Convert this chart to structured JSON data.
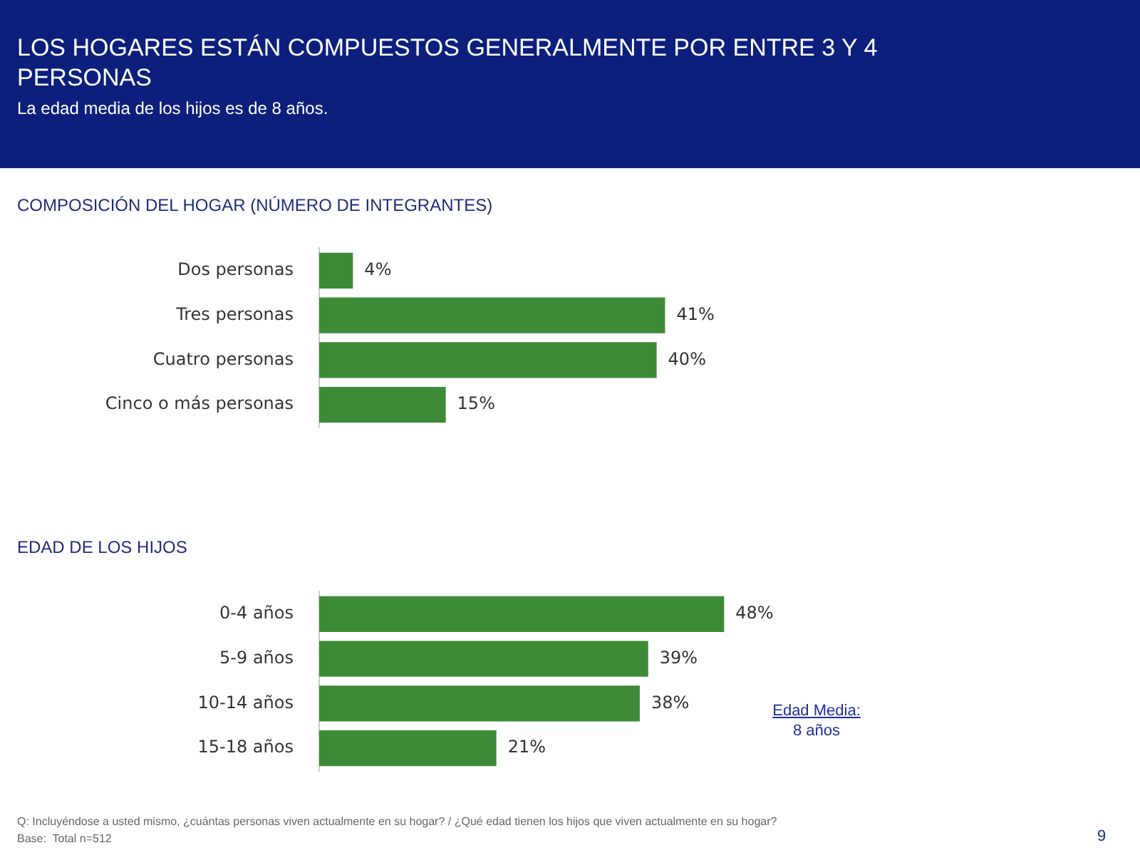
{
  "chart_data": [
    {
      "type": "bar",
      "orientation": "horizontal",
      "title": "LOS HOGARES ESTÁN COMPUESTOS GENERALMENTE POR ENTRE 3 Y 4 PERSONAS",
      "subtitle": "La edad media de los hijos es de 8 años.",
      "annotations": [
        "COMPOSICIÓN DEL HOGAR (NÚMERO DE INTEGRANTES)"
      ],
      "categories": [
        "Dos personas",
        "Tres personas",
        "Cuatro personas",
        "Cinco o más personas"
      ],
      "values": [
        4,
        41,
        40,
        15
      ],
      "value_labels": [
        "4%",
        "41%",
        "40%",
        "15%"
      ],
      "color": "#3d8b37"
    },
    {
      "type": "bar",
      "orientation": "horizontal",
      "title": "EDAD DE LOS HIJOS",
      "annotations": [
        "Edad Media:\n8 años",
        "Q: Incluyéndose a usted mismo,  ¿cuántas personas viven actualmente en su hogar? / ¿Qué edad tienen los hijos que viven actualmente en su hogar?",
        "Base:  Total n=512",
        "9"
      ],
      "categories": [
        "0-4 años",
        "5-9 años",
        "10-14 años",
        "15-18 años"
      ],
      "values": [
        48,
        39,
        38,
        21
      ],
      "value_labels": [
        "48%",
        "39%",
        "38%",
        "21%"
      ],
      "color": "#3d8b37"
    }
  ]
}
